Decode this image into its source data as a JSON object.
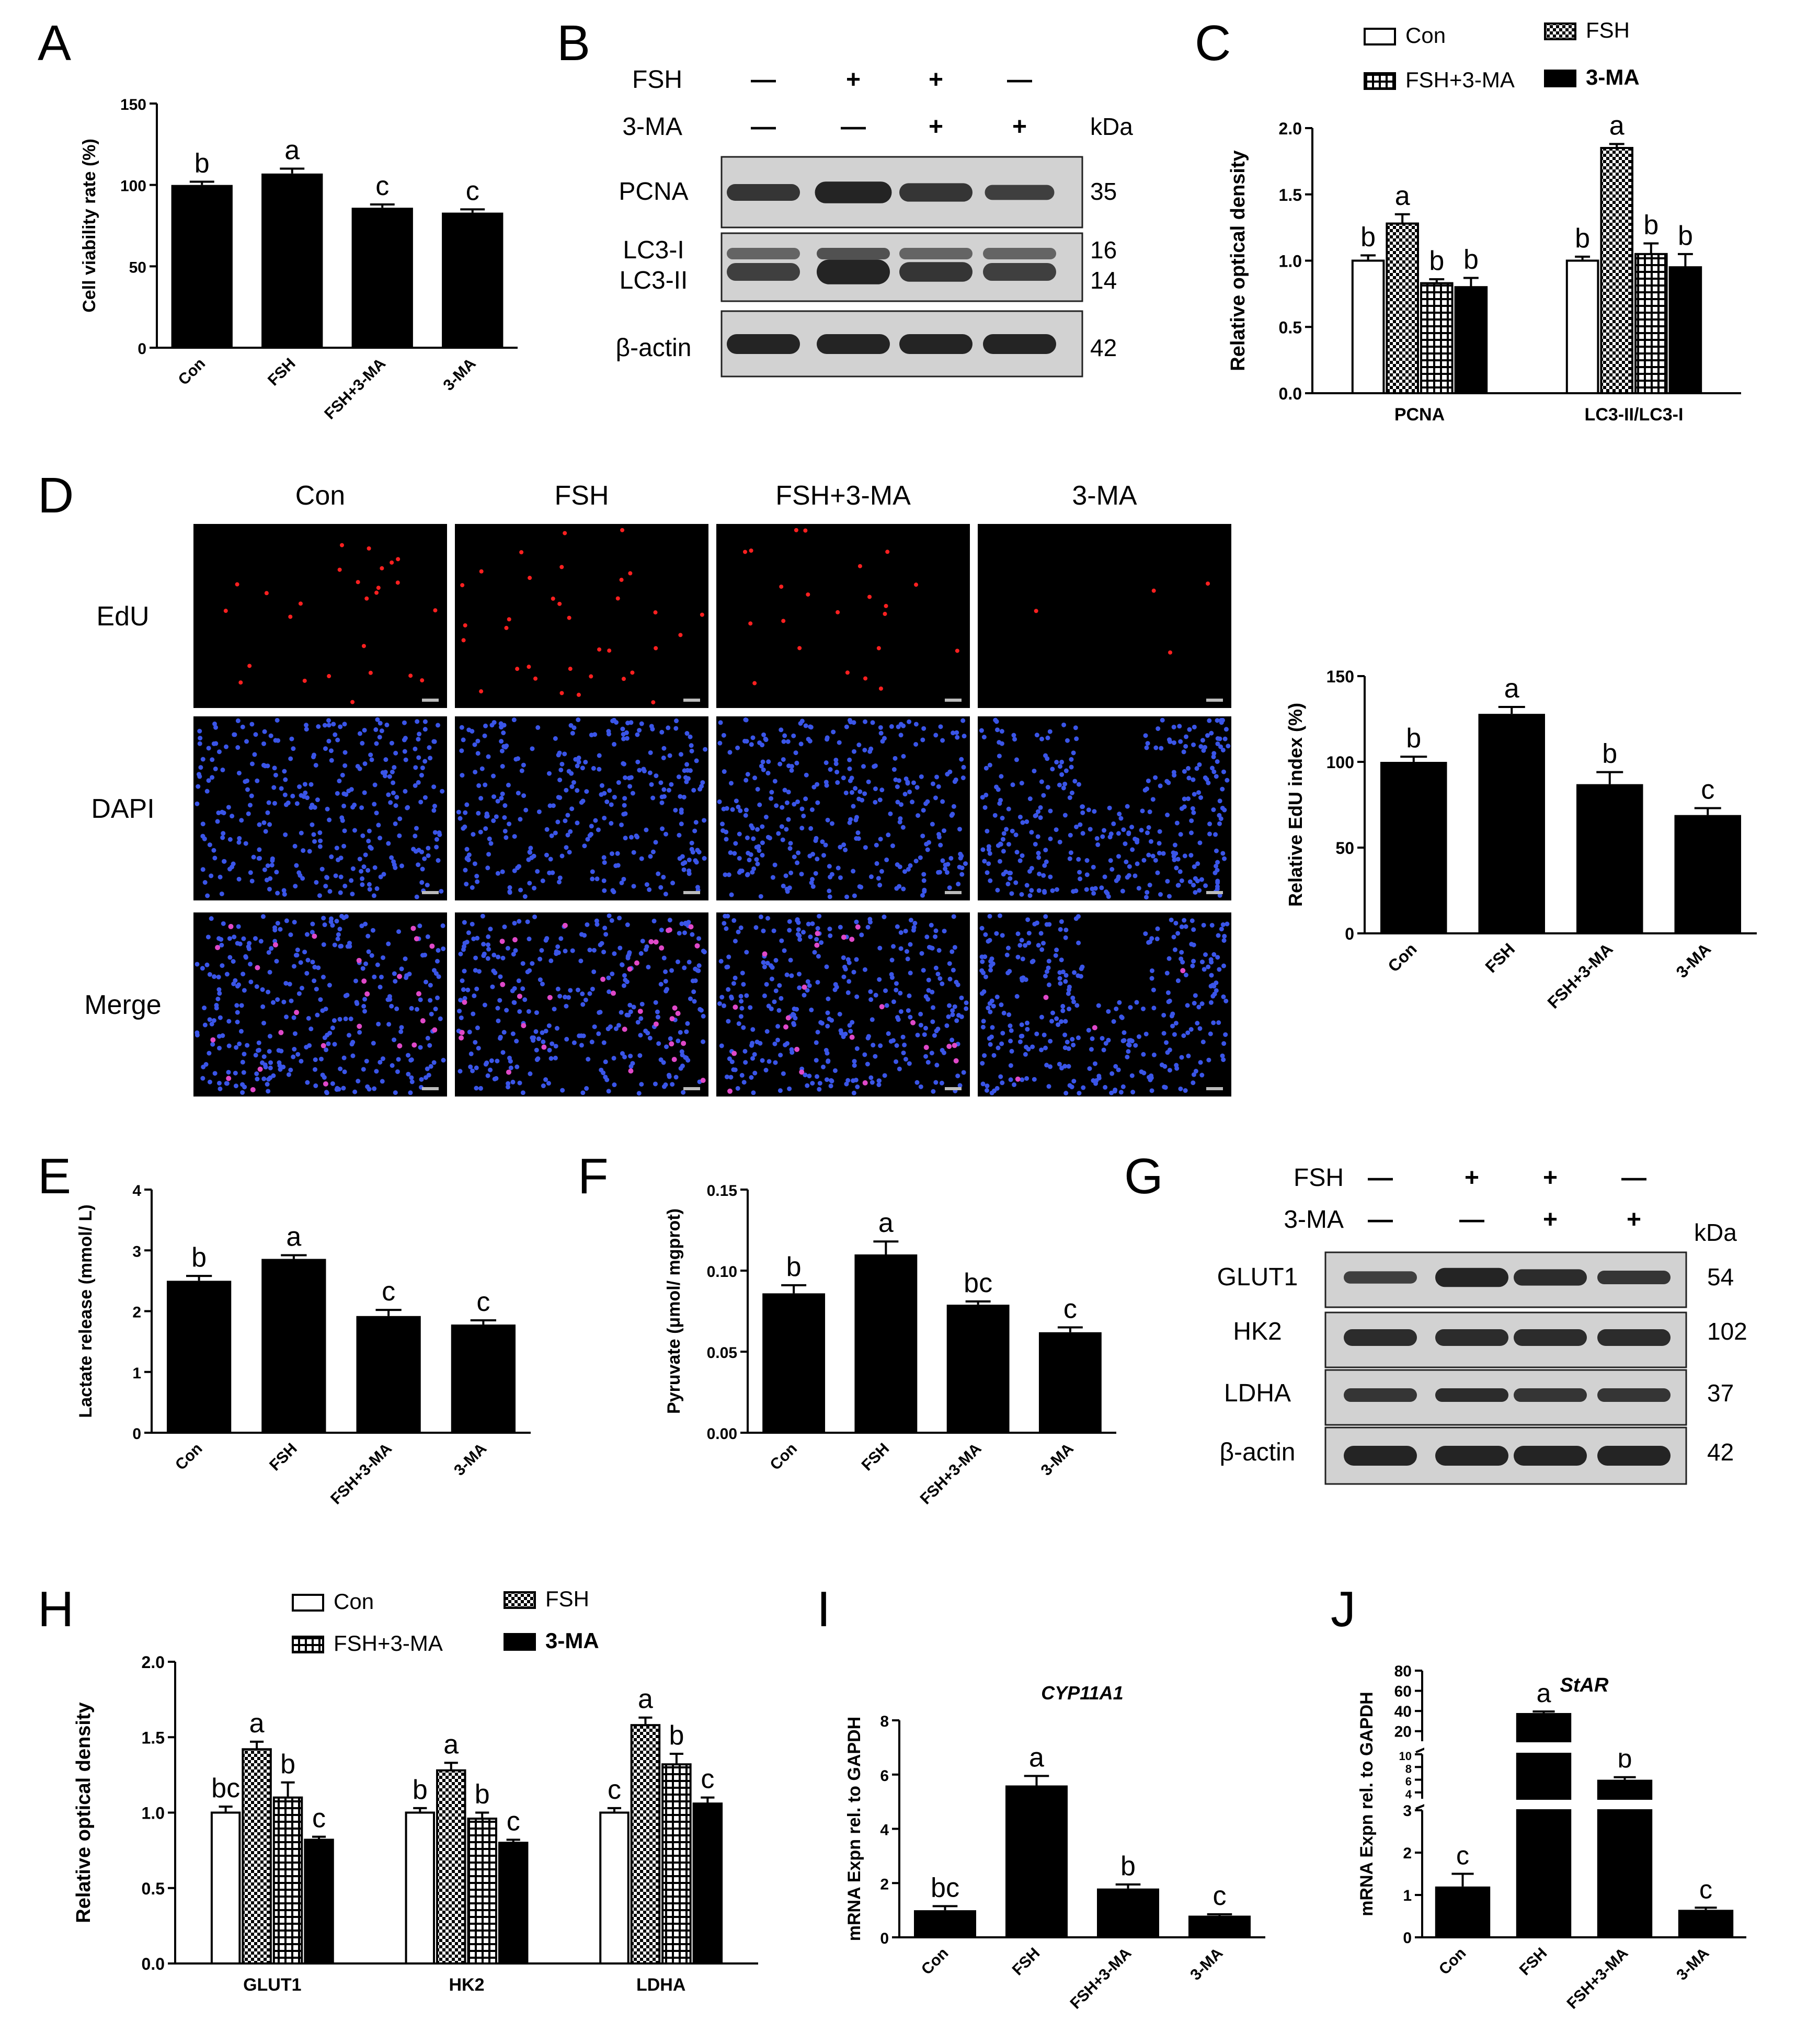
{
  "panels": {
    "A": {
      "letter": "A"
    },
    "B": {
      "letter": "B"
    },
    "C": {
      "letter": "C"
    },
    "D": {
      "letter": "D"
    },
    "E": {
      "letter": "E"
    },
    "F": {
      "letter": "F"
    },
    "G": {
      "letter": "G"
    },
    "H": {
      "letter": "H"
    },
    "I": {
      "letter": "I"
    },
    "J": {
      "letter": "J"
    }
  },
  "blot_B": {
    "row_labels": [
      "FSH",
      "3-MA"
    ],
    "signs": [
      [
        "—",
        "+",
        "+",
        "—"
      ],
      [
        "—",
        "—",
        "+",
        "+"
      ]
    ],
    "kda_label": "kDa",
    "bands": [
      {
        "label": "PCNA",
        "kda": "35"
      },
      {
        "label": "LC3-I",
        "kda": "16"
      },
      {
        "label": "LC3-II",
        "kda": "14"
      },
      {
        "label": "β-actin",
        "kda": "42"
      }
    ]
  },
  "blot_G": {
    "row_labels": [
      "FSH",
      "3-MA"
    ],
    "signs": [
      [
        "—",
        "+",
        "+",
        "—"
      ],
      [
        "—",
        "—",
        "+",
        "+"
      ]
    ],
    "kda_label": "kDa",
    "bands": [
      {
        "label": "GLUT1",
        "kda": "54"
      },
      {
        "label": "HK2",
        "kda": "102"
      },
      {
        "label": "LDHA",
        "kda": "37"
      },
      {
        "label": "β-actin",
        "kda": "42"
      }
    ]
  },
  "image_grid_D": {
    "col_labels": [
      "Con",
      "FSH",
      "FSH+3-MA",
      "3-MA"
    ],
    "row_labels": [
      "EdU",
      "DAPI",
      "Merge"
    ]
  },
  "legend": {
    "con": "Con",
    "fsh": "FSH",
    "fsh3ma": "FSH+3-MA",
    "ma": "3-MA"
  },
  "colors": {
    "black": "#000000",
    "white": "#ffffff",
    "blue_nuclei": "#3a55e8",
    "red_nuclei": "#ff2020"
  },
  "chart_data": [
    {
      "id": "A",
      "type": "bar",
      "categories": [
        "Con",
        "FSH",
        "FSH+3-MA",
        "3-MA"
      ],
      "values": [
        100,
        107,
        86,
        83
      ],
      "errors": [
        2,
        3,
        2,
        2
      ],
      "letters": [
        "b",
        "a",
        "c",
        "c"
      ],
      "ylabel": "Cell viability rate (%)",
      "ylim": [
        0,
        150
      ],
      "yticks": [
        0,
        50,
        100,
        150
      ]
    },
    {
      "id": "C",
      "type": "bar",
      "groups": [
        "PCNA",
        "LC3-II/LC3-I"
      ],
      "series": [
        {
          "name": "Con",
          "values": [
            1.0,
            1.0
          ],
          "errors": [
            0.04,
            0.03
          ]
        },
        {
          "name": "FSH",
          "values": [
            1.28,
            1.85
          ],
          "errors": [
            0.07,
            0.03
          ]
        },
        {
          "name": "FSH+3-MA",
          "values": [
            0.83,
            1.05
          ],
          "errors": [
            0.03,
            0.08
          ]
        },
        {
          "name": "3-MA",
          "values": [
            0.8,
            0.95
          ],
          "errors": [
            0.07,
            0.1
          ]
        }
      ],
      "letters": [
        [
          "b",
          "a",
          "b",
          "b"
        ],
        [
          "b",
          "a",
          "b",
          "b"
        ]
      ],
      "ylabel": "Relative optical density",
      "ylim": [
        0,
        2.0
      ],
      "yticks": [
        "0.0",
        "0.5",
        "1.0",
        "1.5",
        "2.0"
      ],
      "legend": "top"
    },
    {
      "id": "D",
      "type": "bar",
      "categories": [
        "Con",
        "FSH",
        "FSH+3-MA",
        "3-MA"
      ],
      "values": [
        100,
        128,
        87,
        69
      ],
      "errors": [
        3,
        4,
        7,
        4
      ],
      "letters": [
        "b",
        "a",
        "b",
        "c"
      ],
      "ylabel": "Relative EdU index (%)",
      "ylim": [
        0,
        150
      ],
      "yticks": [
        0,
        50,
        100,
        150
      ]
    },
    {
      "id": "E",
      "type": "bar",
      "categories": [
        "Con",
        "FSH",
        "FSH+3-MA",
        "3-MA"
      ],
      "values": [
        2.5,
        2.86,
        1.92,
        1.78
      ],
      "errors": [
        0.08,
        0.06,
        0.1,
        0.07
      ],
      "letters": [
        "b",
        "a",
        "c",
        "c"
      ],
      "ylabel": "Lactate release (mmol/ L)",
      "ylim": [
        0,
        4
      ],
      "yticks": [
        0,
        1,
        2,
        3,
        4
      ]
    },
    {
      "id": "F",
      "type": "bar",
      "categories": [
        "Con",
        "FSH",
        "FSH+3-MA",
        "3-MA"
      ],
      "values": [
        0.086,
        0.11,
        0.079,
        0.062
      ],
      "errors": [
        0.005,
        0.008,
        0.002,
        0.003
      ],
      "letters": [
        "b",
        "a",
        "bc",
        "c"
      ],
      "ylabel": "Pyruvate (μmol/ mgprot)",
      "ylim": [
        0,
        0.15
      ],
      "yticks": [
        "0.00",
        "0.05",
        "0.10",
        "0.15"
      ]
    },
    {
      "id": "H",
      "type": "bar",
      "groups": [
        "GLUT1",
        "HK2",
        "LDHA"
      ],
      "series": [
        {
          "name": "Con",
          "values": [
            1.0,
            1.0,
            1.0
          ],
          "errors": [
            0.04,
            0.03,
            0.03
          ]
        },
        {
          "name": "FSH",
          "values": [
            1.42,
            1.28,
            1.58
          ],
          "errors": [
            0.05,
            0.05,
            0.05
          ]
        },
        {
          "name": "FSH+3-MA",
          "values": [
            1.1,
            0.96,
            1.32
          ],
          "errors": [
            0.1,
            0.04,
            0.07
          ]
        },
        {
          "name": "3-MA",
          "values": [
            0.82,
            0.8,
            1.06
          ],
          "errors": [
            0.02,
            0.02,
            0.04
          ]
        }
      ],
      "letters": [
        [
          "bc",
          "a",
          "b",
          "c"
        ],
        [
          "b",
          "a",
          "b",
          "c"
        ],
        [
          "c",
          "a",
          "b",
          "c"
        ]
      ],
      "ylabel": "Relative optical density",
      "ylim": [
        0,
        2.0
      ],
      "yticks": [
        "0.0",
        "0.5",
        "1.0",
        "1.5",
        "2.0"
      ],
      "legend": "top"
    },
    {
      "id": "I",
      "type": "bar",
      "title": "CYP11A1",
      "categories": [
        "Con",
        "FSH",
        "FSH+3-MA",
        "3-MA"
      ],
      "values": [
        1.0,
        5.6,
        1.8,
        0.8
      ],
      "errors": [
        0.15,
        0.35,
        0.15,
        0.05
      ],
      "letters": [
        "bc",
        "a",
        "b",
        "c"
      ],
      "ylabel": "mRNA  Expn rel. to GAPDH",
      "ylim": [
        0,
        8
      ],
      "yticks": [
        0,
        2,
        4,
        6,
        8
      ]
    },
    {
      "id": "J",
      "type": "bar",
      "title": "StAR",
      "categories": [
        "Con",
        "FSH",
        "FSH+3-MA",
        "3-MA"
      ],
      "values": [
        1.2,
        38,
        6,
        0.65
      ],
      "errors": [
        0.3,
        1.5,
        0.4,
        0.05
      ],
      "letters": [
        "c",
        "a",
        "b",
        "c"
      ],
      "ylabel": "mRNA  Expn rel. to GAPDH",
      "yaxis_segments": [
        {
          "range": [
            0,
            3
          ],
          "ticks": [
            0,
            1,
            2,
            3
          ]
        },
        {
          "range": [
            3,
            10
          ],
          "ticks": [
            4,
            6,
            8,
            10
          ]
        },
        {
          "range": [
            10,
            80
          ],
          "ticks": [
            20,
            40,
            60,
            80
          ]
        }
      ]
    }
  ]
}
